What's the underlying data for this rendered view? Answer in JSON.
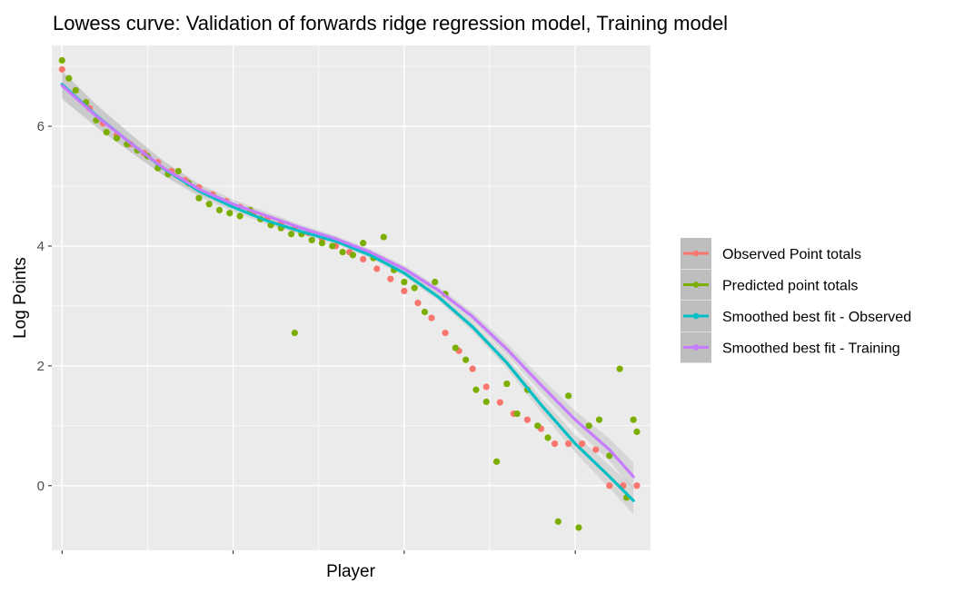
{
  "chart_data": {
    "type": "scatter",
    "title": "Lowess curve: Validation of forwards ridge regression model, Training model",
    "xlabel": "Player",
    "ylabel": "Log Points",
    "xlim": [
      -3,
      172
    ],
    "ylim": [
      -1.08,
      7.35
    ],
    "x_tick_values": [
      0,
      50,
      100,
      150
    ],
    "x_minor_values": [
      25,
      75,
      125,
      175
    ],
    "y_ticks": [
      0,
      2,
      4,
      6
    ],
    "y_tick_labels": [
      "0",
      "2",
      "4",
      "6"
    ],
    "y_minor": [
      1,
      3,
      5,
      7
    ],
    "grid": true,
    "legend_position": "right",
    "colors": {
      "observed": "#F8766D",
      "predicted": "#7CAE00",
      "smooth_observed": "#00BFC4",
      "smooth_training": "#C77CFF",
      "panel": "#EBEBEB",
      "ribbon": "#BDBDBD",
      "legend_key": "#BEBEBE"
    },
    "series": [
      {
        "name": "Observed Point totals",
        "kind": "points",
        "color": "#F8766D",
        "x": [
          0,
          4,
          8,
          12,
          16,
          20,
          24,
          28,
          32,
          36,
          40,
          44,
          48,
          52,
          56,
          60,
          64,
          68,
          72,
          76,
          80,
          84,
          88,
          92,
          96,
          100,
          104,
          108,
          112,
          116,
          120,
          124,
          128,
          132,
          136,
          140,
          144,
          148,
          152,
          156,
          160,
          164,
          168
        ],
        "y": [
          6.95,
          6.6,
          6.3,
          6.05,
          5.85,
          5.7,
          5.55,
          5.4,
          5.25,
          5.1,
          4.98,
          4.86,
          4.75,
          4.65,
          4.55,
          4.46,
          4.38,
          4.3,
          4.22,
          4.12,
          4.0,
          3.9,
          3.78,
          3.62,
          3.45,
          3.25,
          3.05,
          2.8,
          2.55,
          2.25,
          1.95,
          1.65,
          1.39,
          1.2,
          1.1,
          0.95,
          0.7,
          0.7,
          0.7,
          0.6,
          0.0,
          0.0,
          0.0
        ]
      },
      {
        "name": "Predicted point totals",
        "kind": "points",
        "color": "#7CAE00",
        "x": [
          0,
          2,
          4,
          7,
          10,
          13,
          16,
          19,
          22,
          25,
          28,
          31,
          34,
          37,
          40,
          43,
          46,
          49,
          52,
          55,
          58,
          61,
          64,
          67,
          68,
          70,
          73,
          76,
          79,
          82,
          85,
          88,
          91,
          94,
          97,
          100,
          103,
          106,
          109,
          112,
          115,
          118,
          121,
          124,
          127,
          130,
          133,
          136,
          139,
          142,
          145,
          148,
          151,
          154,
          157,
          160,
          163,
          165,
          167,
          168
        ],
        "y": [
          7.1,
          6.8,
          6.6,
          6.4,
          6.1,
          5.9,
          5.8,
          5.7,
          5.6,
          5.5,
          5.3,
          5.2,
          5.25,
          5.05,
          4.8,
          4.7,
          4.6,
          4.55,
          4.5,
          4.6,
          4.45,
          4.35,
          4.3,
          4.2,
          2.55,
          4.2,
          4.1,
          4.05,
          4.0,
          3.9,
          3.85,
          4.05,
          3.8,
          4.15,
          3.6,
          3.4,
          3.3,
          2.9,
          3.4,
          3.2,
          2.3,
          2.1,
          1.6,
          1.4,
          0.4,
          1.7,
          1.2,
          1.6,
          1.0,
          0.8,
          -0.6,
          1.5,
          -0.7,
          1.0,
          1.1,
          0.5,
          1.95,
          -0.2,
          1.1,
          0.9
        ]
      },
      {
        "name": "Smoothed best fit - Observed",
        "kind": "line",
        "color": "#00BFC4",
        "x": [
          0,
          10,
          20,
          30,
          40,
          50,
          60,
          70,
          80,
          90,
          100,
          110,
          120,
          130,
          140,
          150,
          160,
          167
        ],
        "y": [
          6.7,
          6.18,
          5.72,
          5.28,
          4.92,
          4.65,
          4.42,
          4.24,
          4.08,
          3.85,
          3.55,
          3.15,
          2.65,
          2.05,
          1.35,
          0.7,
          0.15,
          -0.25
        ]
      },
      {
        "name": "Smoothed best fit - Training",
        "kind": "line",
        "color": "#C77CFF",
        "x": [
          0,
          10,
          20,
          30,
          40,
          50,
          60,
          70,
          80,
          90,
          100,
          110,
          120,
          130,
          140,
          150,
          160,
          167
        ],
        "y": [
          6.68,
          6.17,
          5.72,
          5.29,
          4.95,
          4.7,
          4.5,
          4.3,
          4.12,
          3.9,
          3.62,
          3.26,
          2.82,
          2.28,
          1.68,
          1.1,
          0.6,
          0.15
        ]
      }
    ]
  },
  "legend": {
    "items": [
      {
        "label": "Observed Point totals",
        "color": "#F8766D"
      },
      {
        "label": "Predicted point totals",
        "color": "#7CAE00"
      },
      {
        "label": "Smoothed best fit - Observed",
        "color": "#00BFC4"
      },
      {
        "label": "Smoothed best fit - Training",
        "color": "#C77CFF"
      }
    ]
  }
}
